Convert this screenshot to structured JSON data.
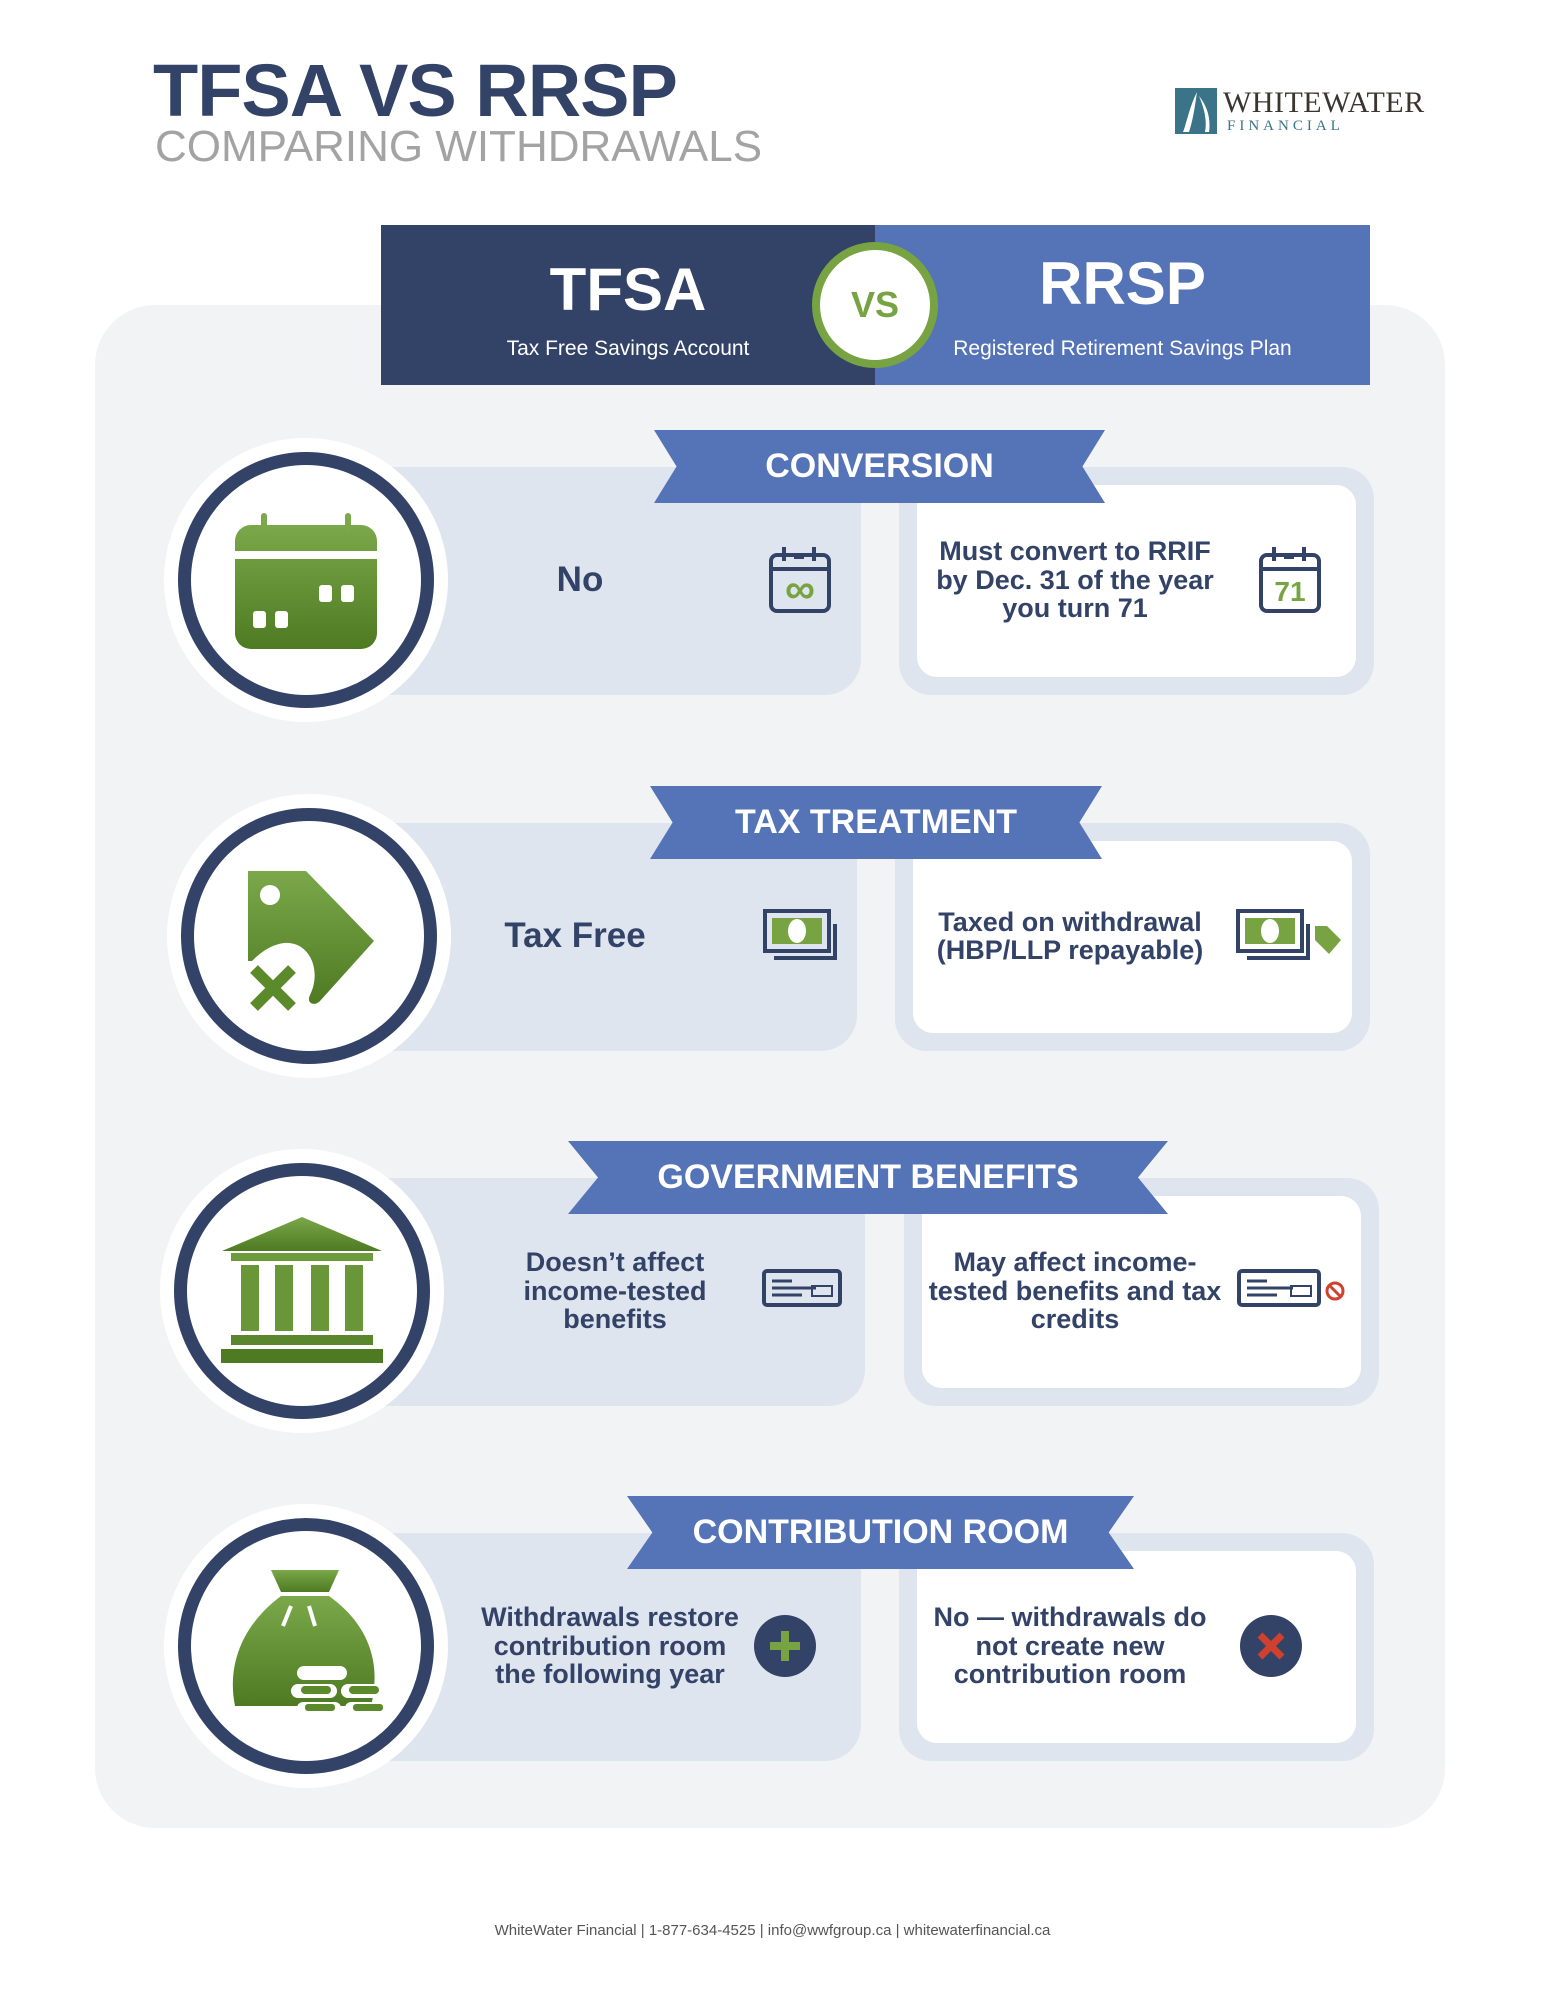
{
  "header": {
    "title": "TFSA VS RRSP",
    "subtitle": "COMPARING WITHDRAWALS"
  },
  "logo": {
    "line1": "WHITEWATER",
    "line2": "FINANCIAL"
  },
  "compare": {
    "left": {
      "name": "TFSA",
      "full": "Tax Free Savings Account"
    },
    "vs": "VS",
    "right": {
      "name": "RRSP",
      "full": "Registered Retirement Savings Plan"
    }
  },
  "rows": [
    {
      "title": "CONVERSION",
      "tfsa": "No",
      "rrsp": "Must convert to RRIF by Dec. 31 of the year you turn 71",
      "icon": "calendar-icon",
      "tfsa_icon": "calendar-infinity-icon",
      "rrsp_icon": "calendar-71-icon",
      "rrsp_icon_text": "71"
    },
    {
      "title": "TAX TREATMENT",
      "tfsa": "Tax Free",
      "rrsp": "Taxed on withdrawal (HBP/LLP repayable)",
      "icon": "tax-tag-x-icon",
      "tfsa_icon": "money-icon",
      "rrsp_icon": "money-tag-icon"
    },
    {
      "title": "GOVERNMENT BENEFITS",
      "tfsa": "Doesn’t affect income-tested benefits",
      "rrsp": "May affect income-tested benefits and tax credits",
      "icon": "government-building-icon",
      "tfsa_icon": "cheque-icon",
      "rrsp_icon": "cheque-prohibited-icon"
    },
    {
      "title": "CONTRIBUTION ROOM",
      "tfsa": "Withdrawals restore contribution room the following year",
      "rrsp": "No — withdrawals do not create new contribution room",
      "icon": "money-bag-icon",
      "tfsa_icon": "plus-circle-icon",
      "rrsp_icon": "x-circle-icon"
    }
  ],
  "footer": "WhiteWater Financial | 1-877-634-4525 | info@wwfgroup.ca | whitewaterfinancial.ca",
  "colors": {
    "navy": "#334368",
    "blue": "#5573b7",
    "green": "#77a343",
    "card": "#dfe5ee",
    "panel": "#f2f3f5",
    "red": "#d0402f"
  }
}
